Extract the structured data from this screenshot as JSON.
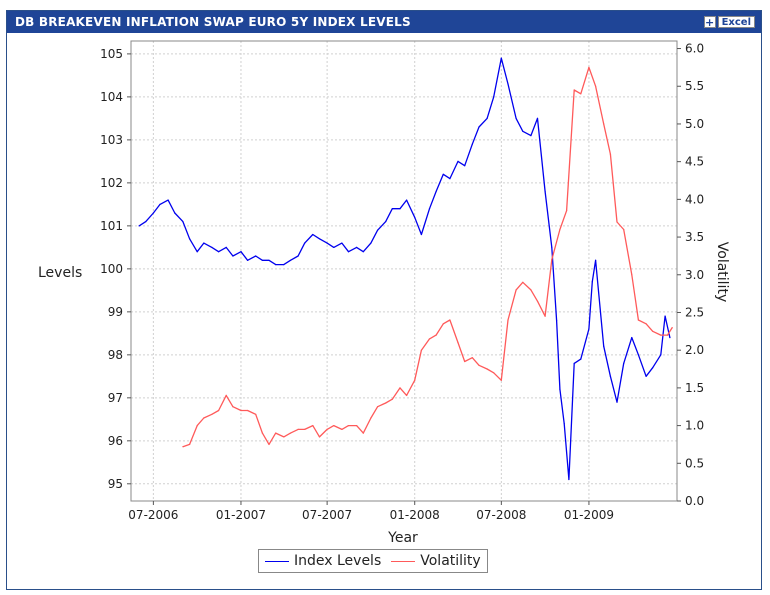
{
  "window": {
    "title": "DB BREAKEVEN INFLATION SWAP EURO 5Y INDEX LEVELS",
    "excel_plus": "+",
    "excel_label": "Excel"
  },
  "colors": {
    "title_bar": "#1f4597",
    "index_series": "#0000ee",
    "volatility_series": "#ff5a5a",
    "grid": "#d0d0d0"
  },
  "chart_data": {
    "type": "line",
    "title": "",
    "xlabel": "Year",
    "ylabel_left": "Levels",
    "ylabel_right": "Volatility",
    "grid": true,
    "legend_position": "bottom-center",
    "x_ticks": [
      "07-2006",
      "01-2007",
      "07-2007",
      "01-2008",
      "07-2008",
      "01-2009"
    ],
    "y_left_ticks": [
      "95",
      "96",
      "97",
      "98",
      "99",
      "100",
      "101",
      "102",
      "103",
      "104",
      "105"
    ],
    "y_right_ticks": [
      "0.0",
      "0.5",
      "1.0",
      "1.5",
      "2.0",
      "2.5",
      "3.0",
      "3.5",
      "4.0",
      "4.5",
      "5.0",
      "5.5",
      "6.0"
    ],
    "ylim_left": [
      94.6,
      105.3
    ],
    "ylim_right": [
      0.0,
      6.1
    ],
    "xlim": [
      "2006-05-15",
      "2009-07-05"
    ],
    "series": [
      {
        "name": "Index Levels",
        "axis": "left",
        "x": [
          "2006-06-01",
          "2006-06-15",
          "2006-07-01",
          "2006-07-15",
          "2006-08-01",
          "2006-08-15",
          "2006-09-01",
          "2006-09-15",
          "2006-10-01",
          "2006-10-15",
          "2006-11-01",
          "2006-11-15",
          "2006-12-01",
          "2006-12-15",
          "2007-01-01",
          "2007-01-15",
          "2007-02-01",
          "2007-02-15",
          "2007-03-01",
          "2007-03-15",
          "2007-04-01",
          "2007-04-15",
          "2007-05-01",
          "2007-05-15",
          "2007-06-01",
          "2007-06-15",
          "2007-07-01",
          "2007-07-15",
          "2007-08-01",
          "2007-08-15",
          "2007-09-01",
          "2007-09-15",
          "2007-10-01",
          "2007-10-15",
          "2007-11-01",
          "2007-11-15",
          "2007-12-01",
          "2007-12-15",
          "2008-01-01",
          "2008-01-15",
          "2008-02-01",
          "2008-02-15",
          "2008-03-01",
          "2008-03-15",
          "2008-04-01",
          "2008-04-15",
          "2008-05-01",
          "2008-05-15",
          "2008-06-01",
          "2008-06-15",
          "2008-07-01",
          "2008-07-15",
          "2008-08-01",
          "2008-08-15",
          "2008-09-01",
          "2008-09-15",
          "2008-10-01",
          "2008-10-15",
          "2008-10-25",
          "2008-11-01",
          "2008-11-10",
          "2008-11-20",
          "2008-12-01",
          "2008-12-15",
          "2009-01-01",
          "2009-01-08",
          "2009-01-15",
          "2009-02-01",
          "2009-02-15",
          "2009-03-01",
          "2009-03-15",
          "2009-04-01",
          "2009-04-15",
          "2009-05-01",
          "2009-05-15",
          "2009-06-01",
          "2009-06-10",
          "2009-06-20"
        ],
        "values": [
          101.0,
          101.1,
          101.3,
          101.5,
          101.6,
          101.3,
          101.1,
          100.7,
          100.4,
          100.6,
          100.5,
          100.4,
          100.5,
          100.3,
          100.4,
          100.2,
          100.3,
          100.2,
          100.2,
          100.1,
          100.1,
          100.2,
          100.3,
          100.6,
          100.8,
          100.7,
          100.6,
          100.5,
          100.6,
          100.4,
          100.5,
          100.4,
          100.6,
          100.9,
          101.1,
          101.4,
          101.4,
          101.6,
          101.2,
          100.8,
          101.4,
          101.8,
          102.2,
          102.1,
          102.5,
          102.4,
          102.9,
          103.3,
          103.5,
          104.0,
          104.9,
          104.3,
          103.5,
          103.2,
          103.1,
          103.5,
          101.8,
          100.5,
          98.8,
          97.2,
          96.4,
          95.1,
          97.8,
          97.9,
          98.6,
          99.7,
          100.2,
          98.2,
          97.5,
          96.9,
          97.8,
          98.4,
          98.0,
          97.5,
          97.7,
          98.0,
          98.9,
          98.4
        ]
      },
      {
        "name": "Volatility",
        "axis": "right",
        "x": [
          "2006-09-01",
          "2006-09-15",
          "2006-10-01",
          "2006-10-15",
          "2006-11-01",
          "2006-11-15",
          "2006-12-01",
          "2006-12-15",
          "2007-01-01",
          "2007-01-15",
          "2007-02-01",
          "2007-02-15",
          "2007-03-01",
          "2007-03-15",
          "2007-04-01",
          "2007-04-15",
          "2007-05-01",
          "2007-05-15",
          "2007-06-01",
          "2007-06-15",
          "2007-07-01",
          "2007-07-15",
          "2007-08-01",
          "2007-08-15",
          "2007-09-01",
          "2007-09-15",
          "2007-10-01",
          "2007-10-15",
          "2007-11-01",
          "2007-11-15",
          "2007-12-01",
          "2007-12-15",
          "2008-01-01",
          "2008-01-15",
          "2008-02-01",
          "2008-02-15",
          "2008-03-01",
          "2008-03-15",
          "2008-04-01",
          "2008-04-15",
          "2008-05-01",
          "2008-05-15",
          "2008-06-01",
          "2008-06-15",
          "2008-07-01",
          "2008-07-15",
          "2008-08-01",
          "2008-08-15",
          "2008-09-01",
          "2008-09-15",
          "2008-10-01",
          "2008-10-15",
          "2008-11-01",
          "2008-11-15",
          "2008-12-01",
          "2008-12-15",
          "2009-01-01",
          "2009-01-15",
          "2009-02-01",
          "2009-02-15",
          "2009-03-01",
          "2009-03-15",
          "2009-04-01",
          "2009-04-15",
          "2009-05-01",
          "2009-05-15",
          "2009-06-01",
          "2009-06-15",
          "2009-06-25"
        ],
        "values": [
          0.72,
          0.75,
          1.0,
          1.1,
          1.15,
          1.2,
          1.4,
          1.25,
          1.2,
          1.2,
          1.15,
          0.9,
          0.75,
          0.9,
          0.85,
          0.9,
          0.95,
          0.95,
          1.0,
          0.85,
          0.95,
          1.0,
          0.95,
          1.0,
          1.0,
          0.9,
          1.1,
          1.25,
          1.3,
          1.35,
          1.5,
          1.4,
          1.6,
          2.0,
          2.15,
          2.2,
          2.35,
          2.4,
          2.1,
          1.85,
          1.9,
          1.8,
          1.75,
          1.7,
          1.6,
          2.4,
          2.8,
          2.9,
          2.8,
          2.65,
          2.45,
          3.2,
          3.6,
          3.85,
          5.45,
          5.4,
          5.75,
          5.5,
          5.0,
          4.6,
          3.7,
          3.6,
          3.0,
          2.4,
          2.35,
          2.25,
          2.2,
          2.2,
          2.3
        ]
      }
    ]
  },
  "legend": [
    {
      "label": "Index Levels"
    },
    {
      "label": "Volatility"
    }
  ]
}
